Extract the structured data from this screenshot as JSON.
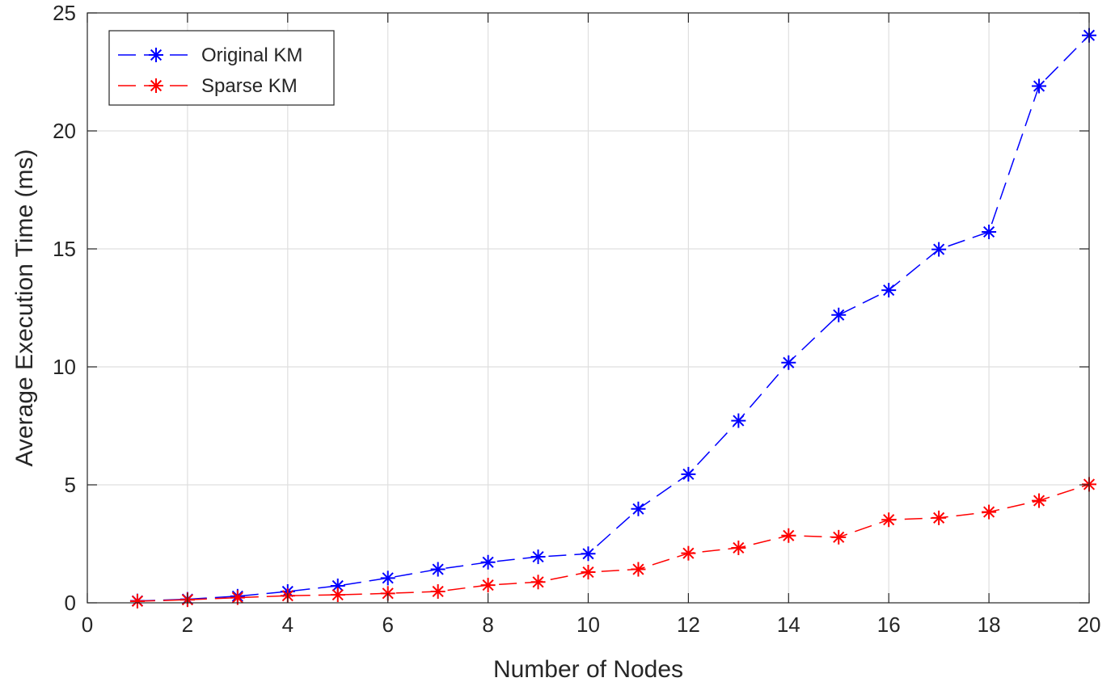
{
  "chart_data": {
    "type": "line",
    "xlabel": "Number of Nodes",
    "ylabel": "Average Execution Time (ms)",
    "xlim": [
      0,
      20
    ],
    "ylim": [
      0,
      25
    ],
    "xticks": [
      0,
      2,
      4,
      6,
      8,
      10,
      12,
      14,
      16,
      18,
      20
    ],
    "yticks": [
      0,
      5,
      10,
      15,
      20,
      25
    ],
    "grid": true,
    "legend_position": "top-left",
    "x": [
      1,
      2,
      3,
      4,
      5,
      6,
      7,
      8,
      9,
      10,
      11,
      12,
      13,
      14,
      15,
      16,
      17,
      18,
      19,
      20
    ],
    "series": [
      {
        "name": "Original KM",
        "color": "#0000ff",
        "line_style": "dashed",
        "marker": "asterisk",
        "values": [
          0.08,
          0.15,
          0.28,
          0.48,
          0.72,
          1.05,
          1.42,
          1.72,
          1.95,
          2.08,
          3.98,
          5.45,
          7.72,
          10.18,
          12.2,
          13.25,
          14.98,
          15.72,
          21.9,
          24.05
        ]
      },
      {
        "name": "Sparse KM",
        "color": "#ff0000",
        "line_style": "dashed",
        "marker": "asterisk",
        "values": [
          0.07,
          0.13,
          0.22,
          0.3,
          0.34,
          0.4,
          0.48,
          0.75,
          0.88,
          1.3,
          1.42,
          2.1,
          2.33,
          2.85,
          2.78,
          3.52,
          3.6,
          3.85,
          4.33,
          5.02
        ]
      }
    ]
  }
}
